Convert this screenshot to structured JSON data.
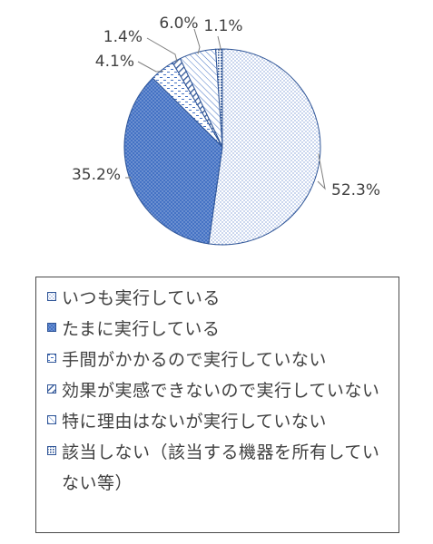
{
  "chart_data": {
    "type": "pie",
    "title": "",
    "start_angle_deg": 0,
    "direction": "clockwise",
    "slices": [
      {
        "label": "いつも実行している",
        "value": 52.3,
        "value_label": "52.3%",
        "pattern": "dots",
        "fill": "#ffffff",
        "ink": "#4472c4"
      },
      {
        "label": "たまに実行している",
        "value": 35.2,
        "value_label": "35.2%",
        "pattern": "dense",
        "fill": "#4472c4",
        "ink": "#ffffff"
      },
      {
        "label": "手間がかかるので実行していない",
        "value": 4.1,
        "value_label": "4.1%",
        "pattern": "dashes",
        "fill": "#ffffff",
        "ink": "#4472c4"
      },
      {
        "label": "効果が実感できないので実行していない",
        "value": 1.4,
        "value_label": "1.4%",
        "pattern": "diag-dark",
        "fill": "#ffffff",
        "ink": "#2f5597"
      },
      {
        "label": "特に理由はないが実行していない",
        "value": 6.0,
        "value_label": "6.0%",
        "pattern": "diag-light",
        "fill": "#ffffff",
        "ink": "#4472c4"
      },
      {
        "label": "該当しない（該当する機器を所有していない等）",
        "value": 1.1,
        "value_label": "1.1%",
        "pattern": "grid",
        "fill": "#ffffff",
        "ink": "#2f5597"
      }
    ],
    "legend_position": "bottom",
    "slice_border": "#2f5597"
  }
}
